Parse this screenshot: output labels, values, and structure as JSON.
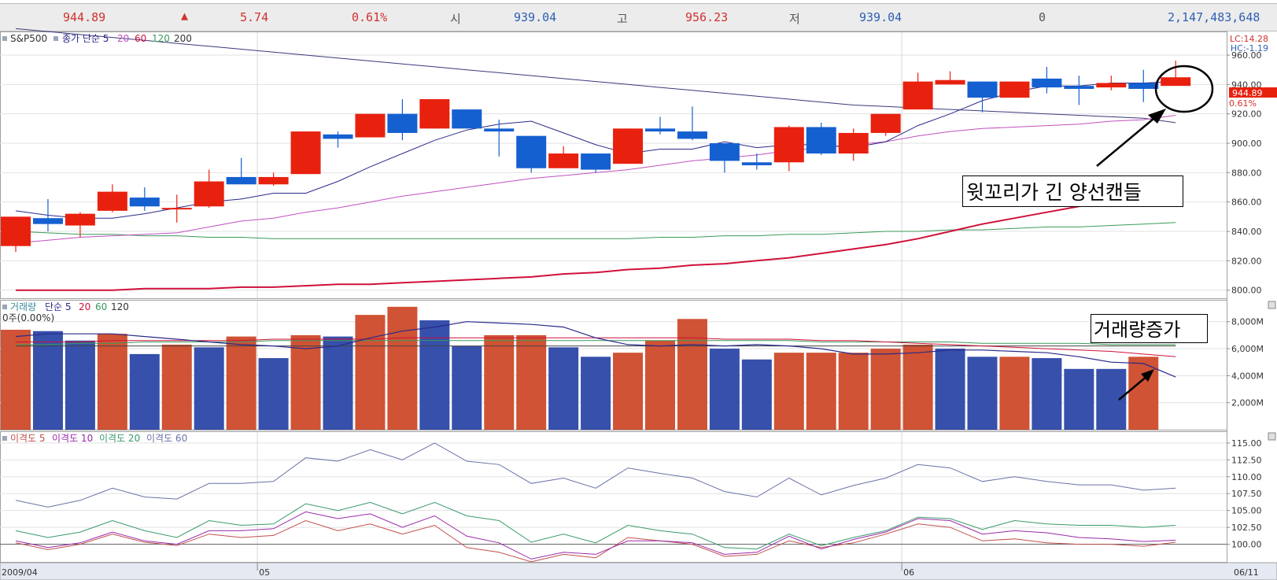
{
  "quote": {
    "last": "944.89",
    "arrow": "▲",
    "change": "5.74",
    "pct": "0.61%",
    "open_label": "시",
    "open": "939.04",
    "high_label": "고",
    "high": "956.23",
    "low_label": "저",
    "low": "939.04",
    "zero": "0",
    "big": "2,147,483,648"
  },
  "colors": {
    "up": "#e8210f",
    "down": "#1560d0",
    "ma5": "#2a2a8a",
    "ma20": "#c050c0",
    "ma60": "#3a9a5a",
    "ma200": "#d0103a",
    "vol_up": "#cf5334",
    "vol_down": "#3650ab"
  },
  "price_panel": {
    "legend_symbol": "S&P500",
    "legend_ma_label": "종가 단순 5",
    "legend_20": "20",
    "legend_60": "60",
    "legend_120": "120",
    "legend_200": "200",
    "lc": "LC:14.28",
    "hc": "HC:-1.19",
    "price_tag": "944.89",
    "price_tag_pct": "0.61%",
    "annotation": "윗꼬리가 긴 양선캔들"
  },
  "volume_panel": {
    "legend_name": "거래량",
    "legend_ma_label": "단순 5",
    "legend_20": "20",
    "legend_60": "60",
    "legend_120": "120",
    "sub_label": "0주(0.00%)",
    "annotation": "거래량증가"
  },
  "disparity_panel": {
    "legend_5": "이격도 5",
    "legend_10": "이격도 10",
    "legend_20": "이격도 20",
    "legend_60": "이격도 60"
  },
  "x_axis": {
    "labels": [
      "2009/04",
      "05",
      "06"
    ],
    "label_index": [
      0,
      8,
      28
    ],
    "right_label": "06/11"
  },
  "chart_data": [
    {
      "type": "candlestick",
      "title": "S&P500",
      "ylim": [
        795,
        975
      ],
      "yticks": [
        "800.00",
        "820.00",
        "840.00",
        "860.00",
        "880.00",
        "900.00",
        "920.00",
        "940.00",
        "960.00"
      ],
      "ytick_values": [
        800,
        820,
        840,
        860,
        880,
        900,
        920,
        940,
        960
      ],
      "candles": [
        {
          "o": 830,
          "h": 850,
          "l": 826,
          "c": 850
        },
        {
          "o": 849,
          "h": 862,
          "l": 840,
          "c": 845
        },
        {
          "o": 844,
          "h": 853,
          "l": 836,
          "c": 852
        },
        {
          "o": 854,
          "h": 872,
          "l": 853,
          "c": 867
        },
        {
          "o": 863,
          "h": 870,
          "l": 854,
          "c": 857
        },
        {
          "o": 855,
          "h": 865,
          "l": 846,
          "c": 856
        },
        {
          "o": 857,
          "h": 882,
          "l": 856,
          "c": 874
        },
        {
          "o": 877,
          "h": 890,
          "l": 872,
          "c": 872
        },
        {
          "o": 872,
          "h": 880,
          "l": 871,
          "c": 877
        },
        {
          "o": 879,
          "h": 908,
          "l": 879,
          "c": 908
        },
        {
          "o": 906,
          "h": 908,
          "l": 897,
          "c": 903
        },
        {
          "o": 904,
          "h": 920,
          "l": 904,
          "c": 920
        },
        {
          "o": 920,
          "h": 930,
          "l": 902,
          "c": 907
        },
        {
          "o": 910,
          "h": 930,
          "l": 910,
          "c": 930
        },
        {
          "o": 923,
          "h": 923,
          "l": 910,
          "c": 910
        },
        {
          "o": 910,
          "h": 916,
          "l": 891,
          "c": 908
        },
        {
          "o": 905,
          "h": 905,
          "l": 880,
          "c": 883
        },
        {
          "o": 883,
          "h": 898,
          "l": 883,
          "c": 893
        },
        {
          "o": 893,
          "h": 893,
          "l": 880,
          "c": 882
        },
        {
          "o": 886,
          "h": 910,
          "l": 886,
          "c": 910
        },
        {
          "o": 910,
          "h": 918,
          "l": 906,
          "c": 908
        },
        {
          "o": 908,
          "h": 925,
          "l": 902,
          "c": 903
        },
        {
          "o": 900,
          "h": 900,
          "l": 880,
          "c": 888
        },
        {
          "o": 887,
          "h": 893,
          "l": 882,
          "c": 885
        },
        {
          "o": 887,
          "h": 912,
          "l": 881,
          "c": 911
        },
        {
          "o": 911,
          "h": 914,
          "l": 892,
          "c": 893
        },
        {
          "o": 893,
          "h": 910,
          "l": 888,
          "c": 907
        },
        {
          "o": 907,
          "h": 920,
          "l": 905,
          "c": 920
        },
        {
          "o": 923,
          "h": 948,
          "l": 923,
          "c": 942
        },
        {
          "o": 940,
          "h": 949,
          "l": 940,
          "c": 943
        },
        {
          "o": 942,
          "h": 942,
          "l": 921,
          "c": 931
        },
        {
          "o": 931,
          "h": 942,
          "l": 931,
          "c": 942
        },
        {
          "o": 944,
          "h": 952,
          "l": 934,
          "c": 938
        },
        {
          "o": 939,
          "h": 946,
          "l": 926,
          "c": 937
        },
        {
          "o": 938,
          "h": 946,
          "l": 936,
          "c": 941
        },
        {
          "o": 941,
          "h": 950,
          "l": 928,
          "c": 937
        },
        {
          "o": 939.04,
          "h": 956.23,
          "l": 939.04,
          "c": 944.89
        }
      ],
      "ma5": [
        854,
        851,
        849,
        849,
        852,
        856,
        860,
        862,
        866,
        866,
        874,
        884,
        893,
        902,
        909,
        913,
        915,
        907,
        899,
        893,
        896,
        896,
        901,
        897,
        899,
        899,
        897,
        901,
        912,
        920,
        929,
        935,
        939,
        939,
        941,
        941,
        942
      ],
      "ma20": [
        832,
        834,
        836,
        837,
        838,
        839,
        843,
        847,
        849,
        853,
        856,
        860,
        864,
        867,
        870,
        873,
        876,
        878,
        880,
        882,
        885,
        888,
        890,
        892,
        895,
        897,
        899,
        901,
        905,
        908,
        910,
        911,
        912,
        913,
        915,
        916,
        919
      ],
      "ma60": [
        840,
        839,
        838,
        838,
        837,
        837,
        836,
        836,
        835,
        835,
        835,
        835,
        835,
        835,
        835,
        835,
        835,
        835,
        835,
        835,
        836,
        836,
        837,
        837,
        838,
        838,
        839,
        840,
        840,
        841,
        841,
        842,
        843,
        843,
        844,
        845,
        846
      ],
      "ma120": [
        978,
        976,
        974,
        972,
        970,
        968,
        966,
        964,
        962,
        960,
        958,
        956,
        954,
        952,
        950,
        948,
        946,
        944,
        942,
        940,
        938,
        936,
        934,
        932,
        930,
        928,
        926,
        925,
        924,
        923,
        922,
        921,
        920,
        919,
        918,
        917,
        914
      ],
      "ma200": [
        800,
        800,
        800,
        800,
        801,
        801,
        801,
        802,
        802,
        803,
        804,
        804,
        805,
        806,
        807,
        808,
        809,
        811,
        812,
        814,
        815,
        817,
        818,
        820,
        822,
        825,
        828,
        831,
        835,
        840,
        845,
        849,
        853,
        857,
        860,
        863,
        866
      ]
    },
    {
      "type": "bar",
      "title": "거래량",
      "ylim": [
        0,
        9500
      ],
      "yticks": [
        "2,000M",
        "4,000M",
        "6,000M",
        "8,000M"
      ],
      "ytick_values": [
        2000,
        4000,
        6000,
        8000
      ],
      "values": [
        7400,
        7300,
        6600,
        7100,
        5600,
        6300,
        6100,
        6900,
        5300,
        7000,
        6900,
        8500,
        9100,
        8100,
        6200,
        7000,
        7000,
        6100,
        5400,
        5700,
        6600,
        8200,
        6000,
        5200,
        5700,
        5700,
        5700,
        6000,
        6300,
        6000,
        5400,
        5400,
        5300,
        4500,
        4500,
        5400
      ],
      "up": [
        1,
        0,
        0,
        1,
        0,
        1,
        0,
        1,
        0,
        1,
        0,
        1,
        1,
        0,
        0,
        1,
        1,
        0,
        0,
        1,
        1,
        1,
        0,
        0,
        1,
        1,
        1,
        1,
        1,
        0,
        0,
        1,
        0,
        0,
        0,
        1
      ],
      "ma5": [
        6900,
        7100,
        7100,
        7100,
        6900,
        6700,
        6500,
        6300,
        6200,
        6000,
        6200,
        6800,
        7300,
        7600,
        8000,
        7900,
        7800,
        7600,
        6800,
        6300,
        6200,
        6300,
        6200,
        6300,
        6200,
        6000,
        5600,
        5600,
        5700,
        5900,
        5900,
        5800,
        5700,
        5400,
        5000,
        4900,
        3900
      ],
      "ma20": [
        6500,
        6500,
        6500,
        6600,
        6600,
        6600,
        6600,
        6600,
        6700,
        6700,
        6700,
        6700,
        6800,
        6800,
        6800,
        6800,
        6800,
        6800,
        6800,
        6800,
        6800,
        6800,
        6700,
        6700,
        6700,
        6600,
        6600,
        6500,
        6400,
        6300,
        6200,
        6100,
        6000,
        5900,
        5800,
        5600,
        5400
      ],
      "ma60": [
        6300,
        6300,
        6400,
        6400,
        6500,
        6500,
        6500,
        6500,
        6600,
        6600,
        6600,
        6600,
        6600,
        6600,
        6600,
        6600,
        6600,
        6600,
        6600,
        6600,
        6600,
        6600,
        6600,
        6600,
        6600,
        6500,
        6500,
        6500,
        6500,
        6500,
        6400,
        6400,
        6400,
        6400,
        6300,
        6300,
        6300
      ],
      "ma120": [
        6200,
        6200,
        6200,
        6200,
        6200,
        6200,
        6200,
        6200,
        6200,
        6200,
        6200,
        6200,
        6200,
        6200,
        6200,
        6200,
        6200,
        6200,
        6200,
        6200,
        6200,
        6200,
        6200,
        6200,
        6200,
        6200,
        6200,
        6200,
        6200,
        6200,
        6200,
        6200,
        6200,
        6200,
        6200,
        6200,
        6200
      ]
    },
    {
      "type": "line",
      "title": "이격도",
      "ylim": [
        97.5,
        116.5
      ],
      "yticks": [
        "100.00",
        "102.50",
        "105.00",
        "107.50",
        "110.00",
        "112.50",
        "115.00"
      ],
      "ytick_values": [
        100,
        102.5,
        105,
        107.5,
        110,
        112.5,
        115
      ],
      "series": [
        {
          "name": "이격도 5",
          "values": [
            100.2,
            99.2,
            100.0,
            101.5,
            100.3,
            99.8,
            101.5,
            101.0,
            101.3,
            103.5,
            102.0,
            103.0,
            101.5,
            102.8,
            99.5,
            98.8,
            97.4,
            98.5,
            98.0,
            101.0,
            100.5,
            100.0,
            98.2,
            98.5,
            100.5,
            99.5,
            100.2,
            101.5,
            103.0,
            102.5,
            100.5,
            100.8,
            100.2,
            100.0,
            100.0,
            99.7,
            100.3
          ]
        },
        {
          "name": "이격도 10",
          "values": [
            100.5,
            99.5,
            100.2,
            101.8,
            100.5,
            100.0,
            102.0,
            102.0,
            102.3,
            104.8,
            103.8,
            104.5,
            102.5,
            104.2,
            101.2,
            100.2,
            97.8,
            98.8,
            98.5,
            100.5,
            100.5,
            100.2,
            98.5,
            98.8,
            101.2,
            99.3,
            100.7,
            101.8,
            103.8,
            103.5,
            101.5,
            102.0,
            101.7,
            101.0,
            100.8,
            100.4,
            100.6
          ]
        },
        {
          "name": "이격도 20",
          "values": [
            102.0,
            101.0,
            101.8,
            103.5,
            102.0,
            101.0,
            103.5,
            102.8,
            103.0,
            106.0,
            105.0,
            106.2,
            104.5,
            106.2,
            104.2,
            103.5,
            100.3,
            101.5,
            100.2,
            102.8,
            102.0,
            101.5,
            99.5,
            99.3,
            101.5,
            99.8,
            101.0,
            102.0,
            104.0,
            103.8,
            102.2,
            103.5,
            103.0,
            102.8,
            102.8,
            102.5,
            102.8
          ]
        },
        {
          "name": "이격도 60",
          "values": [
            106.5,
            105.5,
            106.5,
            108.3,
            107.0,
            106.7,
            109.0,
            109.0,
            109.3,
            112.8,
            112.3,
            114.0,
            112.5,
            115.0,
            112.3,
            111.8,
            109.0,
            109.8,
            108.3,
            111.3,
            110.5,
            109.8,
            107.8,
            107.0,
            109.8,
            107.3,
            108.7,
            109.8,
            111.8,
            111.3,
            109.3,
            110.0,
            109.3,
            108.8,
            108.8,
            108.0,
            108.3
          ]
        }
      ]
    }
  ]
}
